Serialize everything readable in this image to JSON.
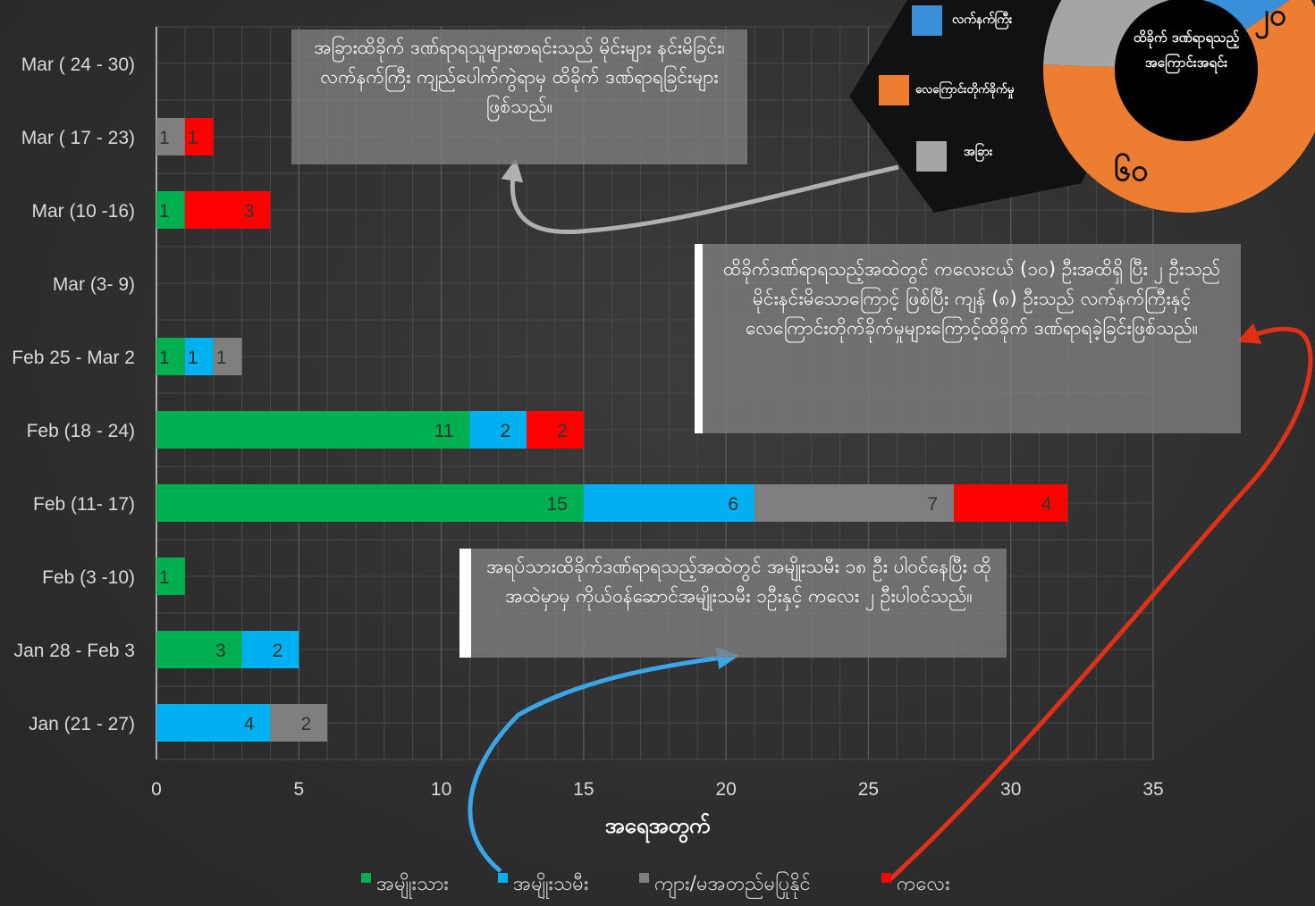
{
  "colors": {
    "male": "#00b050",
    "female": "#00b0f0",
    "unknown": "#7f7f7f",
    "child": "#ff0000",
    "note_box": "#8a8a8a",
    "donut_blue": "#3a8fd9",
    "donut_orange": "#ed7d31",
    "donut_gray": "#a5a5a5",
    "arrow_blue": "#3aa6e8",
    "arrow_red": "#e03018",
    "arrow_gray": "#b0b0b0"
  },
  "chart_data": {
    "type": "bar",
    "orientation": "horizontal",
    "stacked": true,
    "categories": [
      "Mar ( 24 - 30)",
      "Mar ( 17 - 23)",
      "Mar (10 -16)",
      "Mar (3- 9)",
      "Feb 25 - Mar 2",
      "Feb (18 - 24)",
      "Feb (11- 17)",
      "Feb (3 -10)",
      "Jan 28 - Feb 3",
      "Jan (21 - 27)"
    ],
    "series": [
      {
        "name": "အမျိုးသား",
        "color_key": "male",
        "values": [
          0,
          0,
          1,
          0,
          1,
          11,
          15,
          1,
          3,
          0
        ]
      },
      {
        "name": "အမျိုးသမီး",
        "color_key": "female",
        "values": [
          0,
          0,
          0,
          0,
          1,
          2,
          6,
          0,
          2,
          4
        ]
      },
      {
        "name": "ကျား/မအတည်မပြုနိုင်",
        "color_key": "unknown",
        "values": [
          0,
          1,
          0,
          0,
          1,
          0,
          7,
          0,
          0,
          2
        ]
      },
      {
        "name": "ကလေး",
        "color_key": "child",
        "values": [
          0,
          1,
          3,
          0,
          0,
          2,
          4,
          0,
          0,
          0
        ]
      }
    ],
    "series_order_drawn": [
      "male",
      "female",
      "unknown",
      "child"
    ],
    "unknown_drawn_before_child_rows": [
      1
    ],
    "xlim": [
      0,
      35
    ],
    "xticks": [
      0,
      5,
      10,
      15,
      20,
      25,
      30,
      35
    ],
    "xlabel": "အရေအတွက်",
    "ylabel": "",
    "grid": true,
    "legend_position": "bottom",
    "inset_donut": {
      "title": "ထိခိုက် ဒဏ်ရာရသည့် အကြောင်းအရင်း",
      "slices": [
        {
          "name": "လက်နက်ကြီး",
          "value": 20,
          "label": "၂၀",
          "color_key": "donut_blue"
        },
        {
          "name": "လေကြောင်းတိုက်ခိုက်မှု",
          "value": 60,
          "label": "၆၀",
          "color_key": "donut_orange"
        },
        {
          "name": "အခြား",
          "value": 20,
          "label": "",
          "color_key": "donut_gray"
        }
      ]
    }
  },
  "notes": {
    "top": "အခြားထိခိုက် ဒဏ်ရာရသူများစာရင်းသည် မိုင်းများ နင်းမိခြင်း၊ လက်နက်ကြီး ကျည်ပေါက်ကွဲရာမှ ထိခိုက် ဒဏ်ရာရခြင်းများ ဖြစ်သည်။",
    "right": "ထိခိုက်ဒဏ်ရာရသည့်အထဲတွင် ကလေးငယ် (၁၀) ဦးအထိရှိ ပြီး ၂ ဦးသည် မိုင်းနင်းမိသောကြောင့် ဖြစ်ပြီး ကျန် (၈) ဦးသည် လက်နက်ကြီးနှင့် လေကြောင်းတိုက်ခိုက်မှုများကြောင့်ထိခိုက် ဒဏ်ရာရခဲ့ခြင်းဖြစ်သည်။",
    "middle": "အရပ်သားထိခိုက်ဒဏ်ရာရသည့်အထဲတွင် အမျိုးသမီး ၁၈ ဦး ပါဝင်နေပြီး ထိုအထဲမှာမှ ကိုယ်ဝန်ဆောင်အမျိုးသမီး ၁ဦးနှင့် ကလေး ၂ ဦးပါဝင်သည်။"
  }
}
